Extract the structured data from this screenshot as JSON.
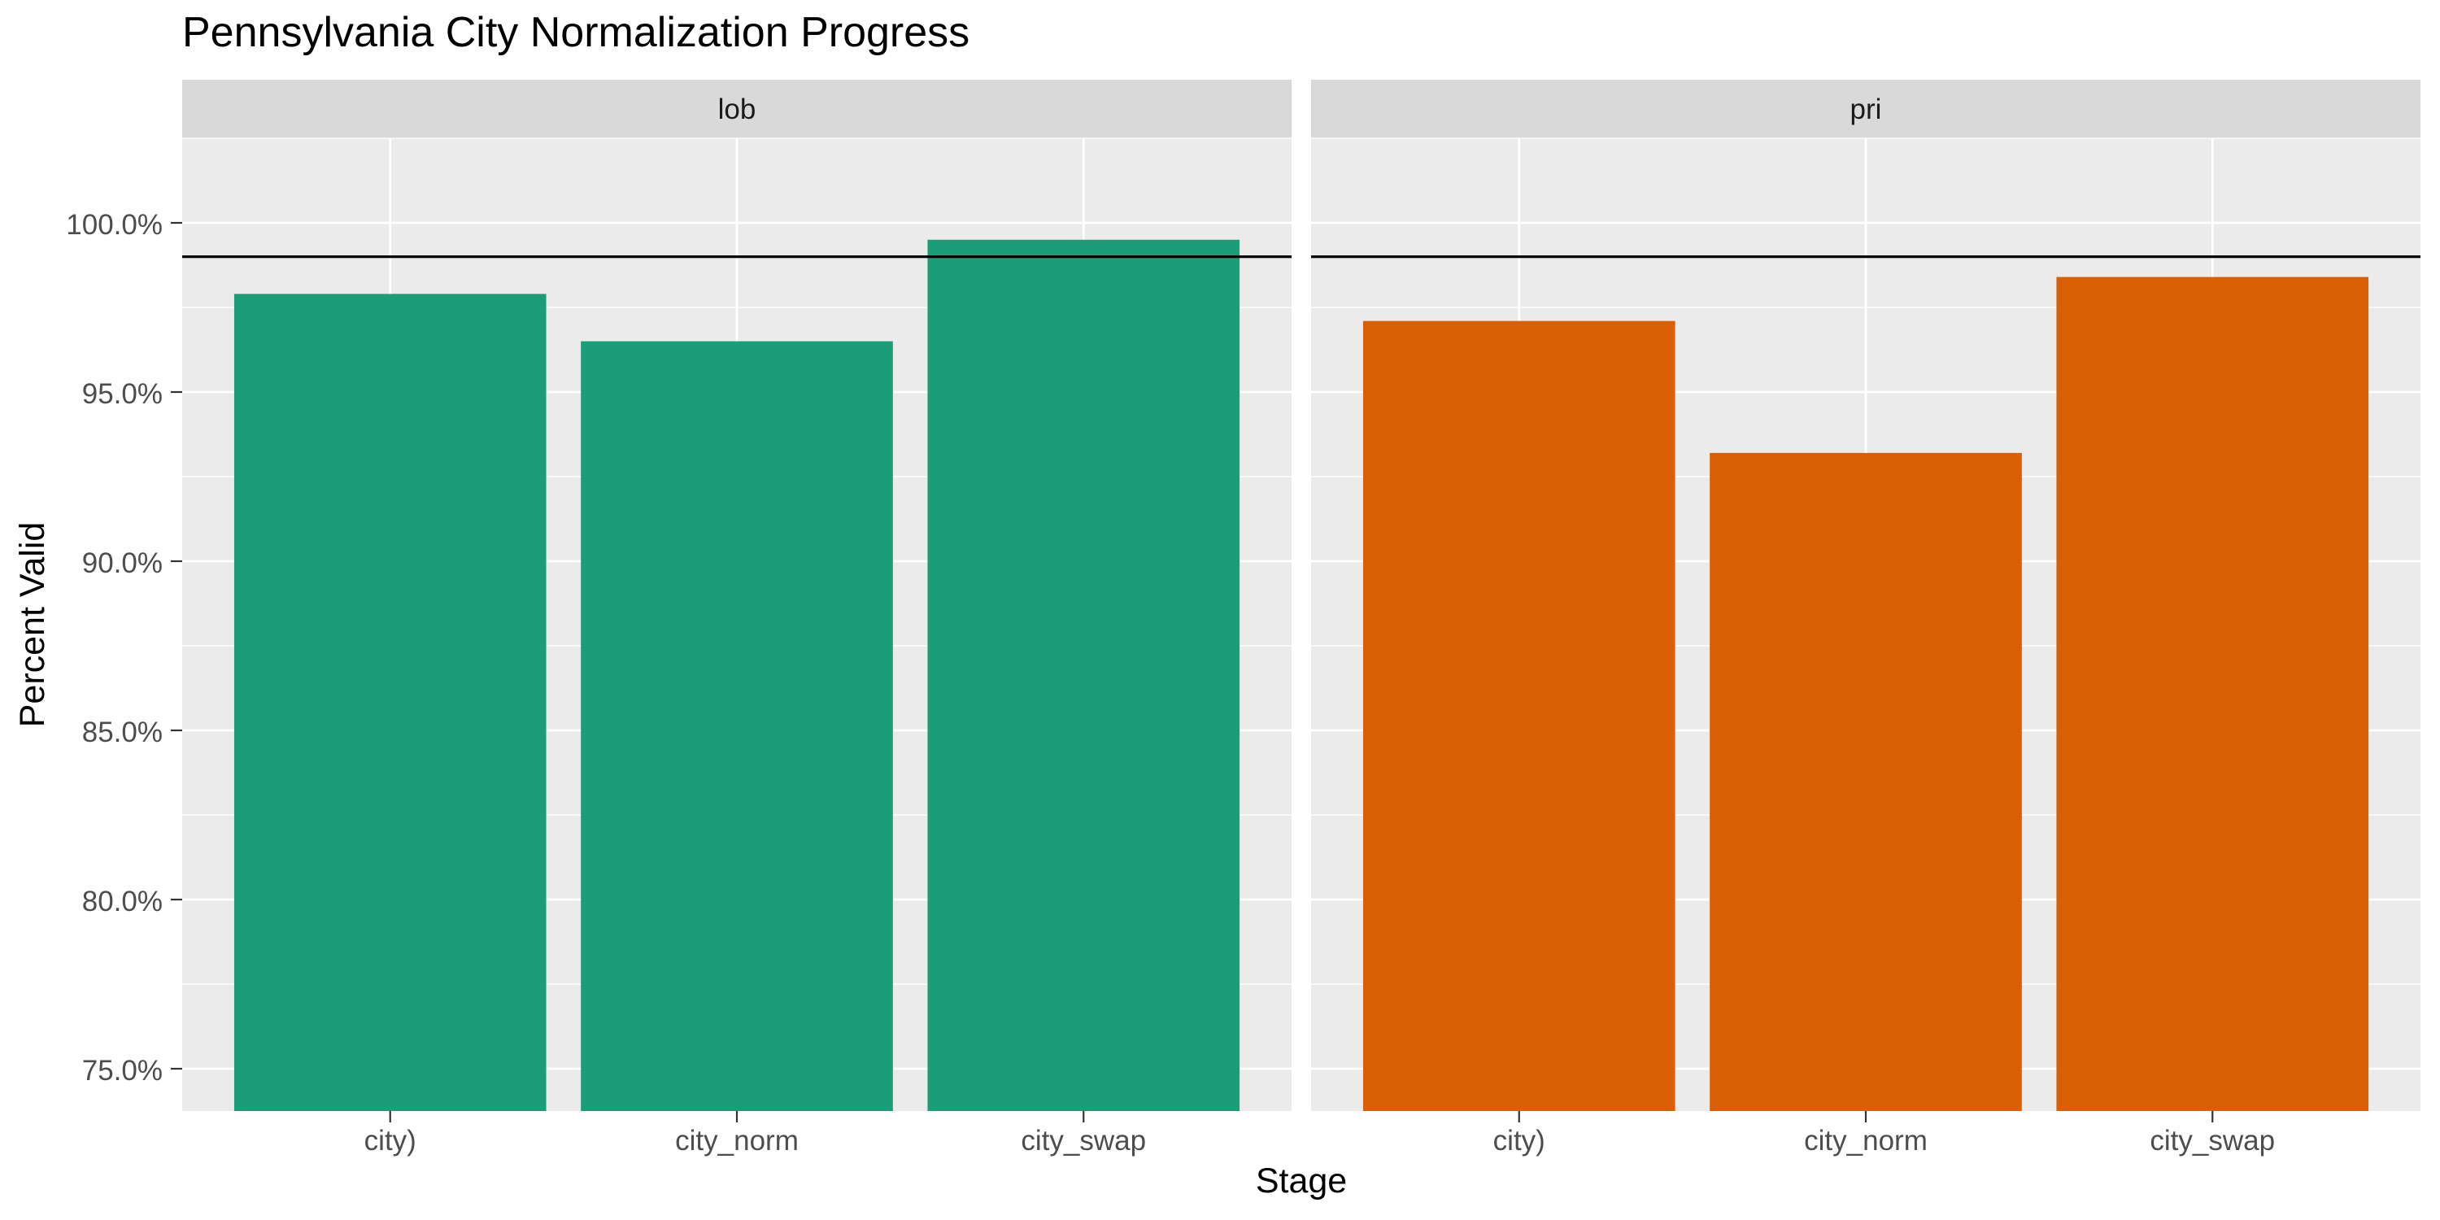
{
  "chart_data": {
    "type": "bar",
    "title": "Pennsylvania City Normalization Progress",
    "xlabel": "Stage",
    "ylabel": "Percent Valid",
    "ylim": [
      73.75,
      102.5
    ],
    "yticks": [
      75,
      80,
      85,
      90,
      95,
      100
    ],
    "ytick_labels": [
      "75.0%",
      "80.0%",
      "85.0%",
      "90.0%",
      "95.0%",
      "100.0%"
    ],
    "categories": [
      "city)",
      "city_norm",
      "city_swap"
    ],
    "reference_line": 99,
    "grid": true,
    "legend": "none",
    "panels": [
      {
        "name": "lob",
        "color": "#1b9e77",
        "values": [
          97.9,
          96.5,
          99.5
        ]
      },
      {
        "name": "pri",
        "color": "#d95f02",
        "values": [
          97.1,
          93.2,
          98.4
        ]
      }
    ]
  }
}
